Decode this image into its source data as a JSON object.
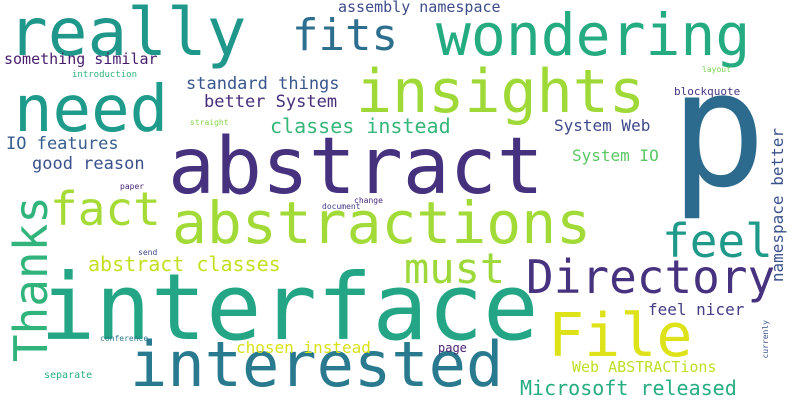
{
  "words": [
    {
      "text": "p",
      "color": "#2c6b8e"
    },
    {
      "text": "interface",
      "color": "#24a686"
    },
    {
      "text": "abstract",
      "color": "#46317e"
    },
    {
      "text": "abstractions",
      "color": "#a2da37"
    },
    {
      "text": "insights",
      "color": "#9fd938"
    },
    {
      "text": "interested",
      "color": "#297a8e"
    },
    {
      "text": "need",
      "color": "#1e9b8a"
    },
    {
      "text": "really",
      "color": "#1f988b"
    },
    {
      "text": "wondering",
      "color": "#25ab82"
    },
    {
      "text": "File",
      "color": "#dde318"
    },
    {
      "text": "Directory",
      "color": "#46327e"
    },
    {
      "text": "Thanks",
      "color": "#30b47b"
    },
    {
      "text": "fact",
      "color": "#a5db36"
    },
    {
      "text": "feel",
      "color": "#1f9a8a"
    },
    {
      "text": "must",
      "color": "#9dd93b"
    },
    {
      "text": "fits",
      "color": "#2e6e8e"
    },
    {
      "text": "classes instead",
      "color": "#35b779"
    },
    {
      "text": "abstract classes",
      "color": "#c5e021"
    },
    {
      "text": "Microsoft released",
      "color": "#26ad81"
    },
    {
      "text": "namespace better",
      "color": "#3b528b"
    },
    {
      "text": "standard things",
      "color": "#39568c"
    },
    {
      "text": "better System",
      "color": "#472d7b"
    },
    {
      "text": "IO features",
      "color": "#365d8d"
    },
    {
      "text": "good reason",
      "color": "#3b518b"
    },
    {
      "text": "something similar",
      "color": "#481d6f"
    },
    {
      "text": "System Web",
      "color": "#3e4989"
    },
    {
      "text": "System IO",
      "color": "#5ac864"
    },
    {
      "text": "chosen instead",
      "color": "#d8e219"
    },
    {
      "text": "feel nicer",
      "color": "#433e85"
    },
    {
      "text": "Web ABSTRACTions",
      "color": "#bddf26"
    },
    {
      "text": "assembly namespace",
      "color": "#3e4c8a"
    },
    {
      "text": "blockquote",
      "color": "#453581"
    },
    {
      "text": "page",
      "color": "#482173"
    },
    {
      "text": "introduction",
      "color": "#31b57b"
    },
    {
      "text": "straight",
      "color": "#86d549"
    },
    {
      "text": "layout",
      "color": "#7ad151"
    },
    {
      "text": "currenly",
      "color": "#3b528b"
    },
    {
      "text": "paper",
      "color": "#482677"
    },
    {
      "text": "change",
      "color": "#472c7a"
    },
    {
      "text": "document",
      "color": "#424086"
    },
    {
      "text": "send",
      "color": "#3e4989"
    },
    {
      "text": "conference",
      "color": "#2a788e"
    },
    {
      "text": "separate",
      "color": "#26ad81"
    }
  ]
}
